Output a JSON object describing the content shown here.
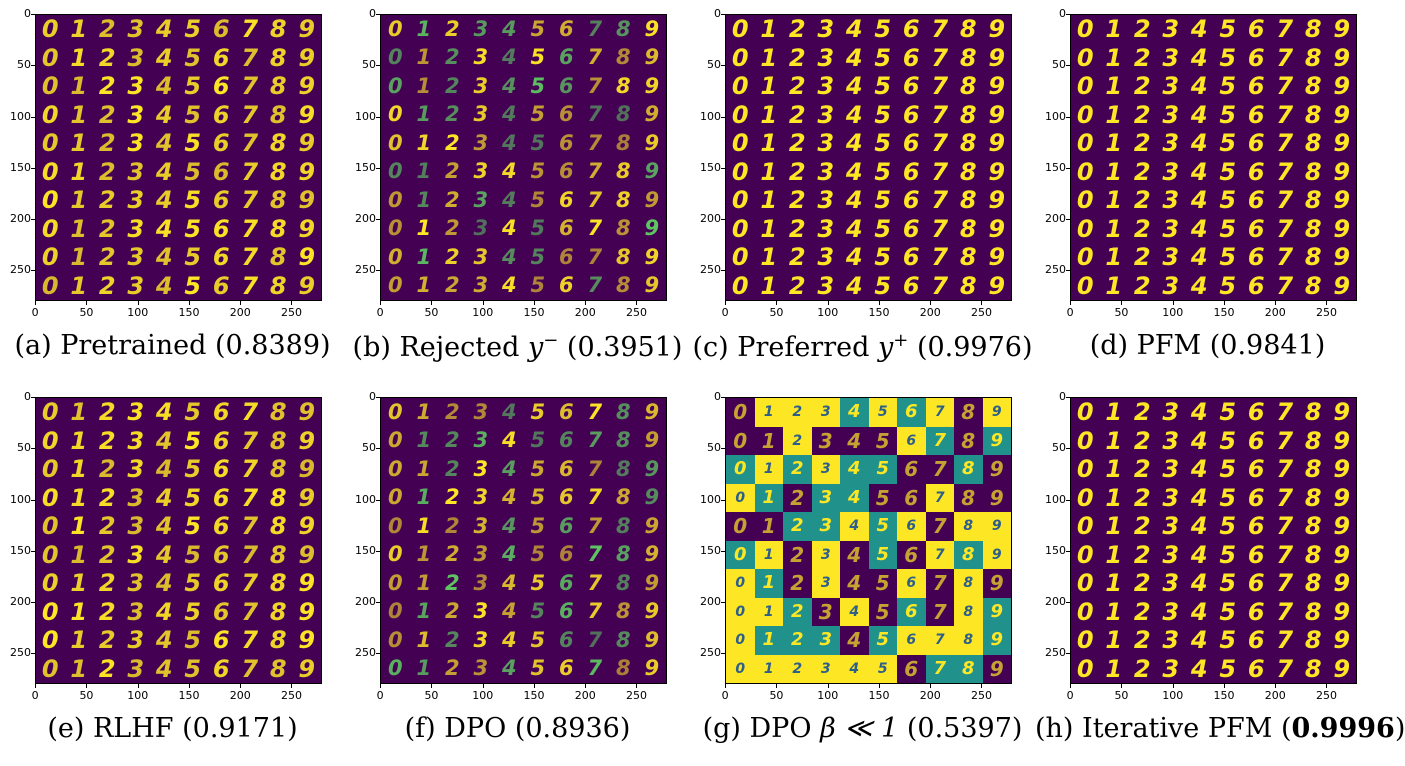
{
  "axis_ticks": [
    "0",
    "50",
    "100",
    "150",
    "200",
    "250"
  ],
  "digits": [
    "0",
    "1",
    "2",
    "3",
    "4",
    "5",
    "6",
    "7",
    "8",
    "9"
  ],
  "colors": {
    "background": "#440154",
    "digit": "#fde725",
    "mid": "#21918c",
    "light": "#5ec962"
  },
  "panels": [
    {
      "id": "a",
      "prefix": "(a) Pretrained",
      "symbol": "",
      "sup": "",
      "score": "(0.8389)",
      "style": "normal"
    },
    {
      "id": "b",
      "prefix": "(b) Rejected",
      "symbol": "y",
      "sup": "−",
      "score": "(0.3951)",
      "style": "noisy"
    },
    {
      "id": "c",
      "prefix": "(c) Preferred",
      "symbol": "y",
      "sup": "+",
      "score": "(0.9976)",
      "style": "clean"
    },
    {
      "id": "d",
      "prefix": "(d) PFM",
      "symbol": "",
      "sup": "",
      "score": "(0.9841)",
      "style": "clean"
    },
    {
      "id": "e",
      "prefix": "(e) RLHF",
      "symbol": "",
      "sup": "",
      "score": "(0.9171)",
      "style": "normal"
    },
    {
      "id": "f",
      "prefix": "(f) DPO",
      "symbol": "",
      "sup": "",
      "score": "(0.8936)",
      "style": "noisy"
    },
    {
      "id": "g",
      "prefix": "(g) DPO",
      "symbol": "β ≪ 1",
      "sup": "",
      "score": "(0.5397)",
      "style": "collapsed"
    },
    {
      "id": "h",
      "prefix": "(h) Iterative PFM (",
      "symbol": "",
      "sup": "",
      "score": "0.9996",
      "suffix": ")",
      "style": "clean",
      "bold_score": true
    }
  ]
}
